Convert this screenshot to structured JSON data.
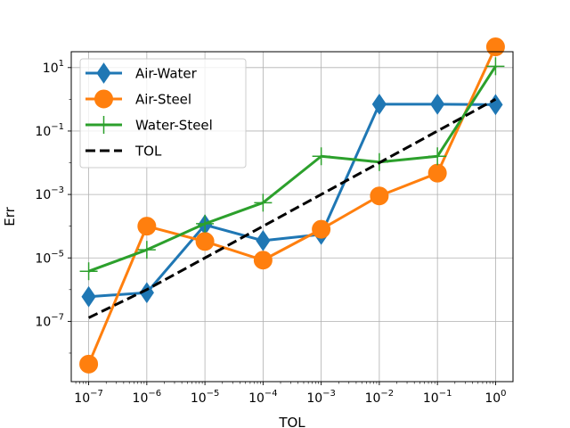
{
  "chart_data": {
    "type": "line",
    "scale": {
      "x": "log",
      "y": "log"
    },
    "xlabel": "TOL",
    "ylabel": "Err",
    "xlim_exp": [
      -7.3,
      0.3
    ],
    "ylim_exp": [
      -8.9,
      1.5
    ],
    "x_tick_exponents": [
      -7,
      -6,
      -5,
      -4,
      -3,
      -2,
      -1,
      0
    ],
    "y_tick_exponents": [
      -7,
      -5,
      -3,
      -1,
      1
    ],
    "tick_base": "10",
    "grid": true,
    "legend_position": "upper-left",
    "x": [
      1e-07,
      1e-06,
      1e-05,
      0.0001,
      0.001,
      0.01,
      0.1,
      1.0
    ],
    "series": [
      {
        "name": "Air-Water",
        "color": "#1f77b4",
        "marker": "thin-diamond",
        "values": [
          6e-07,
          8e-07,
          0.00011,
          3.5e-05,
          5.5e-05,
          0.7,
          0.7,
          0.68
        ]
      },
      {
        "name": "Air-Steel",
        "color": "#ff7f0e",
        "marker": "circle",
        "values": [
          4.5e-09,
          0.0001,
          3.3e-05,
          8.5e-06,
          8e-05,
          0.0009,
          0.0047,
          45
        ]
      },
      {
        "name": "Water-Steel",
        "color": "#2ca02c",
        "marker": "plus",
        "values": [
          3.8e-06,
          1.8e-05,
          0.00012,
          0.00055,
          0.016,
          0.0105,
          0.016,
          11
        ]
      },
      {
        "name": "TOL",
        "color": "#000000",
        "marker": "none",
        "dashed": true,
        "values": [
          1.3e-07,
          1e-06,
          1e-05,
          0.0001,
          0.001,
          0.01,
          0.1,
          1.0
        ]
      }
    ]
  }
}
